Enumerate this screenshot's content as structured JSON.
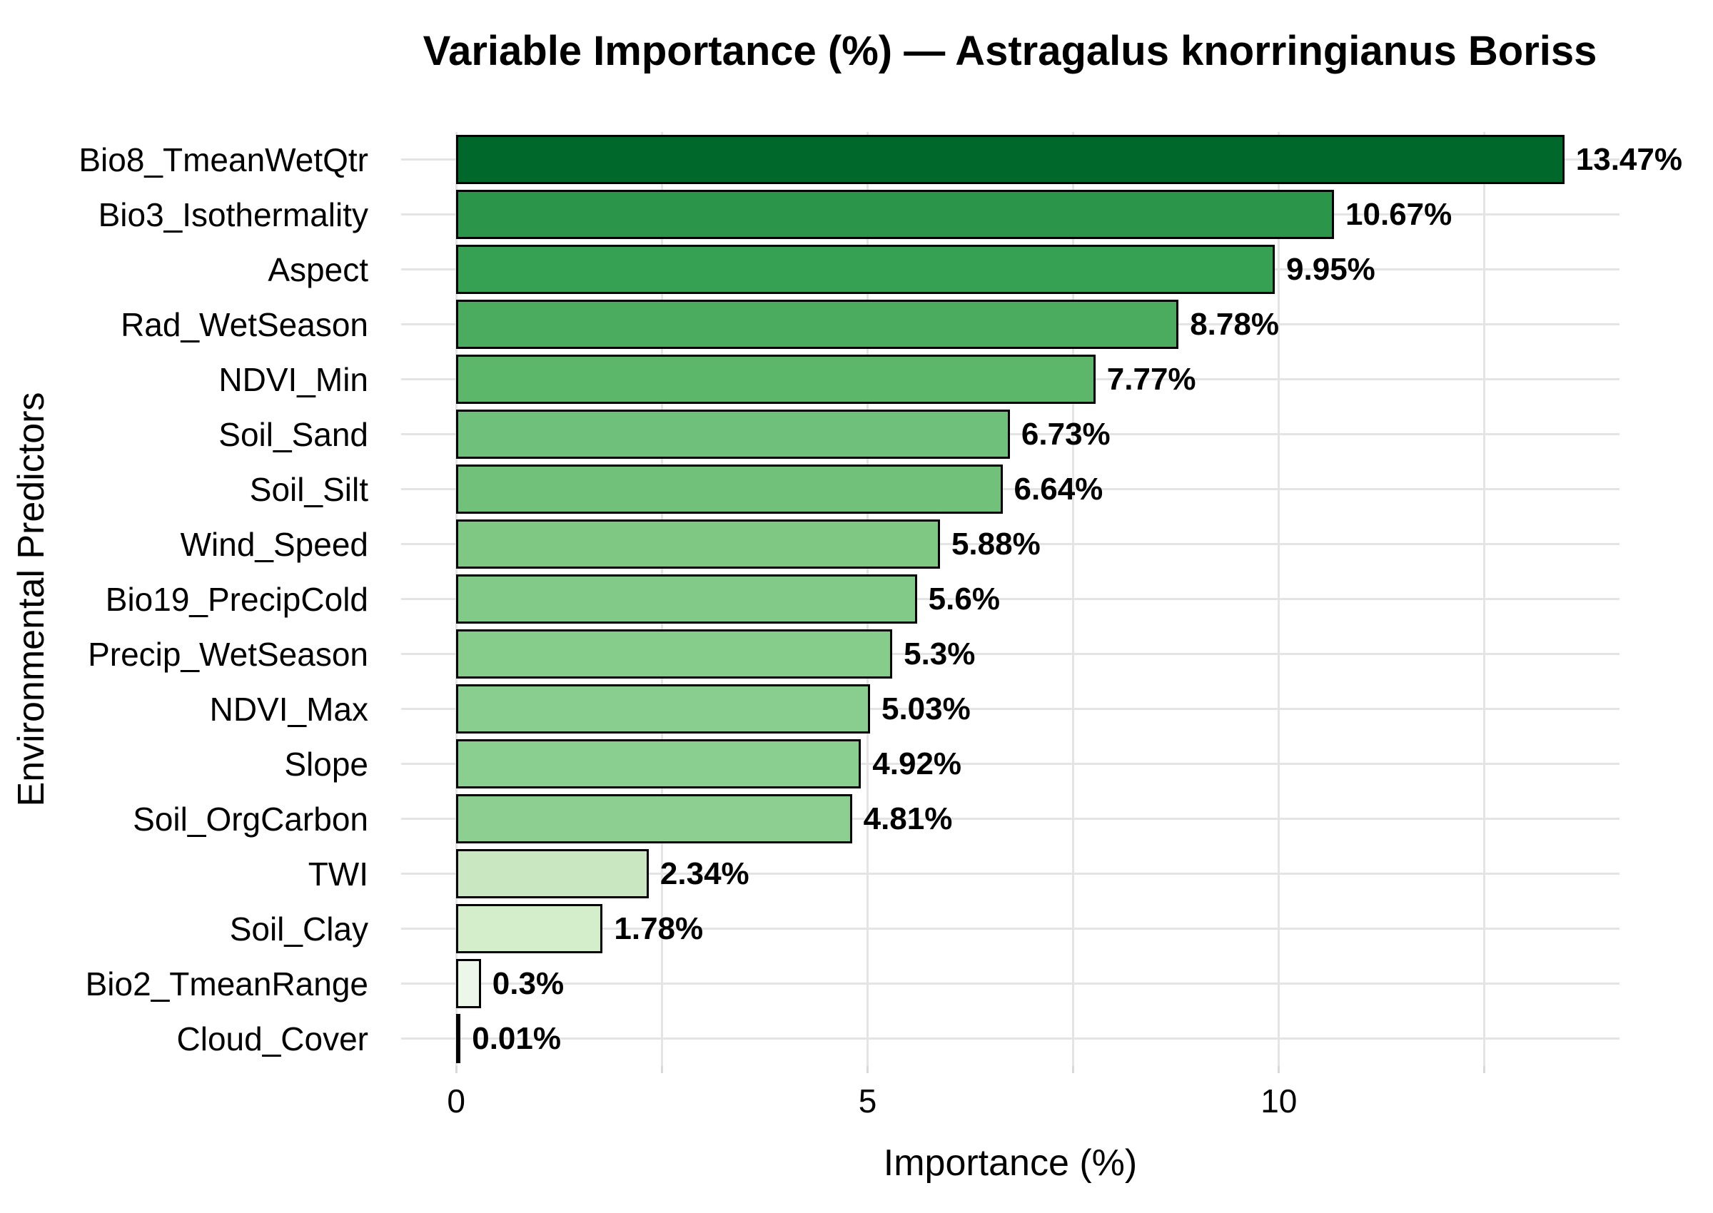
{
  "title": "Variable Importance (%) — Astragalus knorringianus Boriss",
  "chart_data": {
    "type": "bar",
    "orientation": "horizontal",
    "title": "Variable Importance (%) — Astragalus knorringianus Boriss",
    "xlabel": "Importance (%)",
    "ylabel": "Environmental Predictors",
    "xlim": [
      -0.67,
      14.14
    ],
    "x_major_ticks": [
      0,
      5,
      10
    ],
    "x_tick_labels": [
      "0",
      "5",
      "10"
    ],
    "x_gridlines": [
      0,
      2.5,
      5,
      7.5,
      10,
      12.5
    ],
    "grid": "on",
    "legend": "none",
    "grid_color": "#e4e4e4",
    "bar_border_color": "#000000",
    "categories": [
      "Bio8_TmeanWetQtr",
      "Bio3_Isothermality",
      "Aspect",
      "Rad_WetSeason",
      "NDVI_Min",
      "Soil_Sand",
      "Soil_Silt",
      "Wind_Speed",
      "Bio19_PrecipCold",
      "Precip_WetSeason",
      "NDVI_Max",
      "Slope",
      "Soil_OrgCarbon",
      "TWI",
      "Soil_Clay",
      "Bio2_TmeanRange",
      "Cloud_Cover"
    ],
    "values": [
      13.47,
      10.67,
      9.95,
      8.78,
      7.77,
      6.73,
      6.64,
      5.88,
      5.6,
      5.3,
      5.03,
      4.92,
      4.81,
      2.34,
      1.78,
      0.3,
      0.01
    ],
    "value_labels": [
      "13.47%",
      "10.67%",
      "9.95%",
      "8.78%",
      "7.77%",
      "6.73%",
      "6.64%",
      "5.88%",
      "5.6%",
      "5.3%",
      "5.03%",
      "4.92%",
      "4.81%",
      "2.34%",
      "1.78%",
      "0.3%",
      "0.01%"
    ],
    "bar_colors": [
      "#00682b",
      "#2b9649",
      "#36a053",
      "#4bac5f",
      "#5cb76a",
      "#6fc07a",
      "#71c17b",
      "#7ec884",
      "#82ca88",
      "#86cc8b",
      "#89ce8e",
      "#8bcf90",
      "#8ccf91",
      "#c9e8c1",
      "#d4edca",
      "#edf7e9",
      "#f5faf2"
    ]
  }
}
